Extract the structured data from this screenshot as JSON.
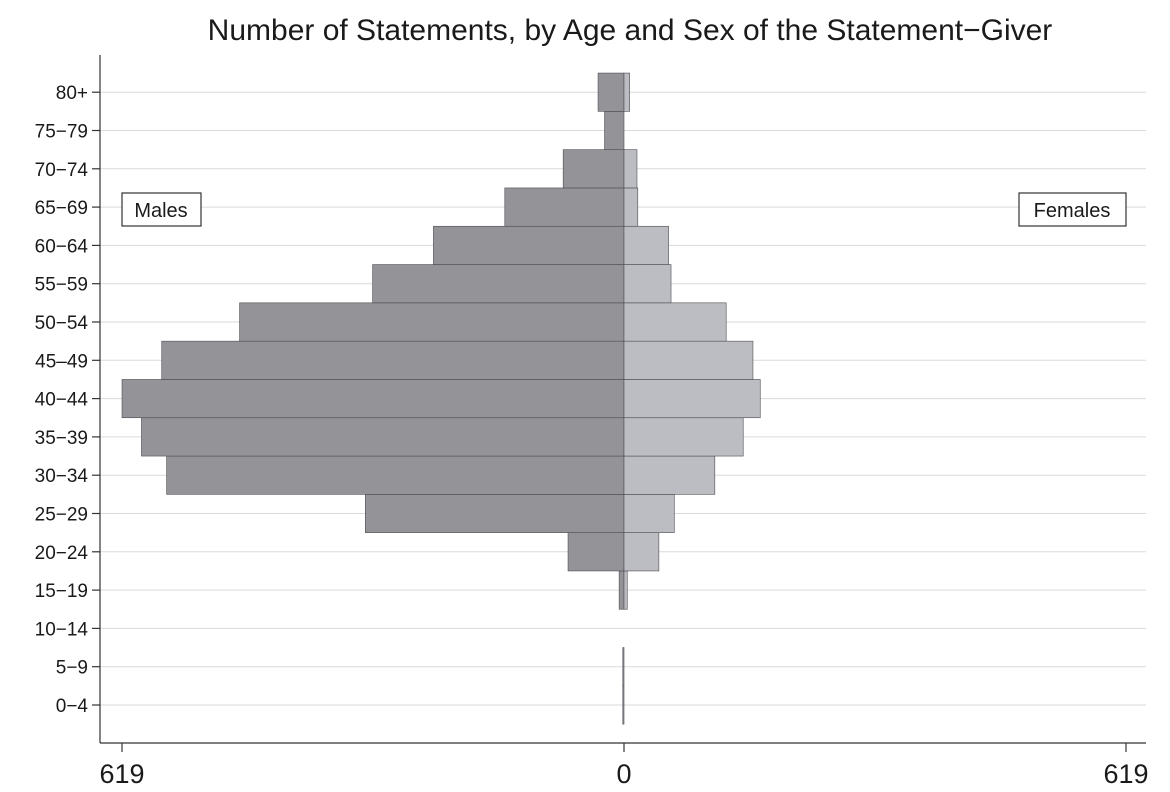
{
  "chart_data": {
    "type": "bar",
    "orientation": "horizontal",
    "layout": "population-pyramid",
    "title": "Number of Statements, by Age and Sex of the Statement−Giver",
    "categories": [
      "0−4",
      "5−9",
      "10−14",
      "15−19",
      "20−24",
      "25−29",
      "30−34",
      "35−39",
      "40−44",
      "45–49",
      "50−54",
      "55−59",
      "60−64",
      "65−69",
      "70−74",
      "75−79",
      "80+"
    ],
    "series": [
      {
        "name": "Males",
        "side": "left",
        "color": "#939398",
        "values": [
          1,
          1,
          0,
          6,
          69,
          319,
          564,
          595,
          619,
          570,
          474,
          310,
          235,
          147,
          75,
          24,
          32
        ]
      },
      {
        "name": "Females",
        "side": "right",
        "color": "#bcbdc2",
        "values": [
          0,
          0,
          0,
          4,
          43,
          62,
          112,
          147,
          168,
          159,
          126,
          58,
          55,
          17,
          16,
          0,
          7
        ]
      }
    ],
    "xlim": [
      -619,
      619
    ],
    "xticks": [
      {
        "value": -619,
        "label": "619"
      },
      {
        "value": 0,
        "label": "0"
      },
      {
        "value": 619,
        "label": "619"
      }
    ],
    "grid": true,
    "legend": [
      {
        "label": "Males",
        "placement": "left"
      },
      {
        "label": "Females",
        "placement": "right"
      }
    ]
  }
}
